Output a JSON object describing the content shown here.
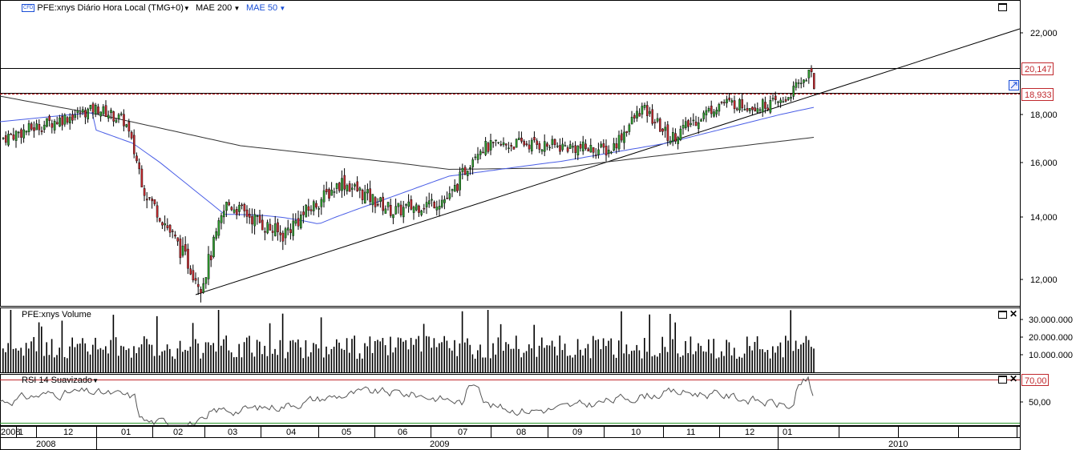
{
  "header": {
    "cfd_badge": "CFD",
    "symbol_label": "PFE:xnys Diário Hora Local (TMG+0)",
    "mae200_label": "MAE 200",
    "mae50_label": "MAE 50"
  },
  "volume_panel": {
    "title": "PFE:xnys Volume"
  },
  "rsi_panel": {
    "title": "RSI 14 Suavizado"
  },
  "price_axis_labels": [
    "22,000",
    "18,000",
    "16,000",
    "14,000",
    "12,000"
  ],
  "price_tags": {
    "upper": "20,147",
    "lower": "18,933"
  },
  "volume_axis_labels": [
    "30.000.000",
    "20.000.000",
    "10.000.000"
  ],
  "rsi_axis_labels": [
    "70,00",
    "50,00"
  ],
  "time_axis": {
    "months": [
      "2008",
      "1",
      "12",
      "01",
      "02",
      "03",
      "04",
      "05",
      "06",
      "07",
      "08",
      "09",
      "10",
      "11",
      "12",
      "01"
    ],
    "years": [
      "2008",
      "2009",
      "2010"
    ]
  },
  "colors": {
    "up_candle": "#2e9a2e",
    "down_candle": "#c0282d",
    "mae200": "#333333",
    "mae50": "#4a5ee6",
    "resistance": "#c0282d",
    "rsi_70": "#c0282d",
    "rsi_30": "#2e9a2e",
    "tag_border": "#c0282d"
  },
  "chart_data": {
    "type": "candlestick",
    "title": "PFE:xnys Diário Hora Local (TMG+0)",
    "series": [
      {
        "name": "PFE:xnys",
        "kind": "ohlc",
        "points": [
          {
            "date": "2008-12-01",
            "close": 17.0
          },
          {
            "date": "2008-12-31",
            "close": 18.3
          },
          {
            "date": "2009-01-15",
            "close": 17.7
          },
          {
            "date": "2009-02-01",
            "close": 14.9
          },
          {
            "date": "2009-03-05",
            "close": 11.8
          },
          {
            "date": "2009-03-20",
            "close": 14.5
          },
          {
            "date": "2009-04-15",
            "close": 13.4
          },
          {
            "date": "2009-05-10",
            "close": 15.3
          },
          {
            "date": "2009-06-10",
            "close": 14.2
          },
          {
            "date": "2009-06-30",
            "close": 14.7
          },
          {
            "date": "2009-07-15",
            "close": 16.6
          },
          {
            "date": "2009-08-15",
            "close": 16.8
          },
          {
            "date": "2009-09-15",
            "close": 16.5
          },
          {
            "date": "2009-10-05",
            "close": 18.3
          },
          {
            "date": "2009-10-30",
            "close": 17.0
          },
          {
            "date": "2009-11-20",
            "close": 18.6
          },
          {
            "date": "2009-12-10",
            "close": 18.4
          },
          {
            "date": "2009-12-31",
            "close": 18.6
          },
          {
            "date": "2010-01-15",
            "close": 20.1
          },
          {
            "date": "2010-01-22",
            "close": 18.9
          }
        ]
      },
      {
        "name": "MAE 200",
        "kind": "line"
      },
      {
        "name": "MAE 50",
        "kind": "line"
      }
    ],
    "price_axis": {
      "ticks": [
        12,
        14,
        16,
        18,
        22
      ],
      "range": [
        11.3,
        23.0
      ]
    },
    "horizontal_levels": [
      20.147,
      18.933
    ],
    "volume": {
      "ticks": [
        10000000,
        20000000,
        30000000
      ]
    },
    "rsi": {
      "ticks": [
        50,
        70
      ],
      "range": [
        20,
        80
      ]
    }
  }
}
